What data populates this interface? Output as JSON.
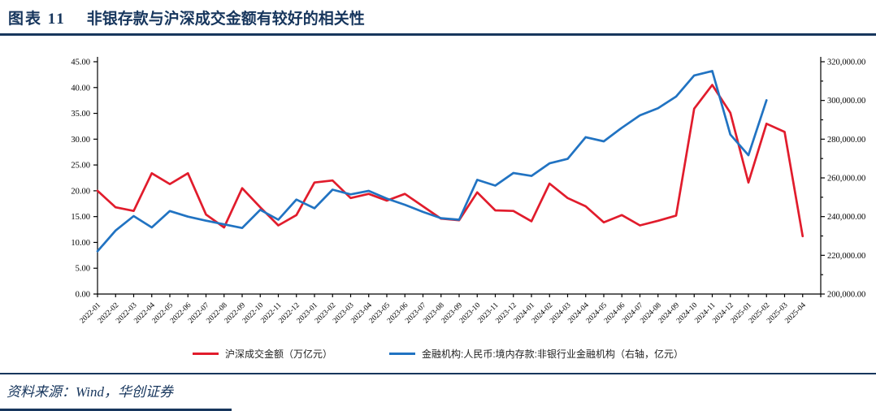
{
  "header": {
    "figure_label": "图表 11",
    "title": "非银存款与沪深成交金额有较好的相关性"
  },
  "footer": {
    "source": "资料来源：Wind，华创证券"
  },
  "colors": {
    "accent_navy": "#17365d",
    "series_red": "#e11c2c",
    "series_blue": "#2173c2",
    "axis_black": "#000000"
  },
  "chart_data": {
    "type": "line",
    "x": [
      "2022-01",
      "2022-02",
      "2022-03",
      "2022-04",
      "2022-05",
      "2022-06",
      "2022-07",
      "2022-08",
      "2022-09",
      "2022-10",
      "2022-11",
      "2022-12",
      "2023-01",
      "2023-02",
      "2023-03",
      "2023-04",
      "2023-05",
      "2023-06",
      "2023-07",
      "2023-08",
      "2023-09",
      "2023-10",
      "2023-11",
      "2023-12",
      "2024-01",
      "2024-02",
      "2024-03",
      "2024-04",
      "2024-05",
      "2024-06",
      "2024-07",
      "2024-08",
      "2024-09",
      "2024-10",
      "2024-11",
      "2024-12",
      "2025-01",
      "2025-02",
      "2025-03",
      "2025-04"
    ],
    "series": [
      {
        "name": "沪深成交金额（万亿元）",
        "axis": "left",
        "color": "#e11c2c",
        "values": [
          20.0,
          16.8,
          16.1,
          23.4,
          21.3,
          23.4,
          15.4,
          12.9,
          20.5,
          16.8,
          13.3,
          15.3,
          21.6,
          22.0,
          18.6,
          19.4,
          18.1,
          19.4,
          17.0,
          14.6,
          14.3,
          19.7,
          16.2,
          16.1,
          14.1,
          21.4,
          18.6,
          17.0,
          13.9,
          15.3,
          13.3,
          14.2,
          15.2,
          35.9,
          40.5,
          35.1,
          21.6,
          33.0,
          31.4,
          11.2
        ]
      },
      {
        "name": "金融机构:人民币:境内存款:非银行业金融机构（右轴，亿元）",
        "axis": "right",
        "color": "#2173c2",
        "values": [
          222100,
          232800,
          240300,
          234400,
          242900,
          240000,
          237900,
          236000,
          234100,
          243500,
          238400,
          248800,
          244300,
          253900,
          251500,
          253300,
          249300,
          246100,
          242400,
          239200,
          238400,
          259000,
          256000,
          262500,
          261000,
          267500,
          269800,
          281000,
          278900,
          285900,
          292300,
          296000,
          302000,
          312900,
          315200,
          282400,
          271700,
          300100,
          null,
          null
        ]
      }
    ],
    "left_axis": {
      "min": 0,
      "max": 45,
      "step": 5,
      "decimals": 2
    },
    "right_axis": {
      "min": 200000,
      "max": 320000,
      "step": 20000,
      "minor_step": 10000,
      "decimals": 2
    },
    "grid": false,
    "legend_position": "bottom",
    "x_label_rotation": -45
  }
}
